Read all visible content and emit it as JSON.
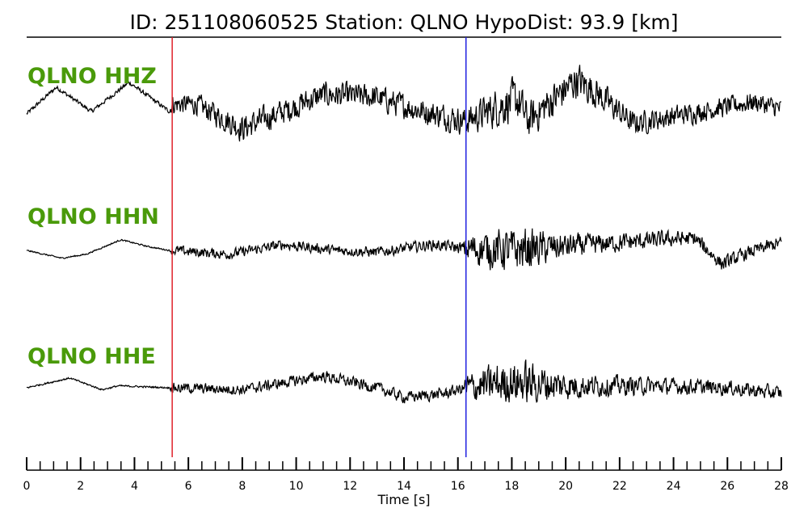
{
  "chart_data": {
    "type": "line",
    "title": "ID: 251108060525   Station: QLNO   HypoDist:     93.9 [km]",
    "xlabel": "Time [s]",
    "xlim": [
      0,
      28
    ],
    "x_ticks": [
      0,
      2,
      4,
      6,
      8,
      10,
      12,
      14,
      16,
      18,
      20,
      22,
      24,
      26,
      28
    ],
    "x_minor_step": 0.5,
    "grid": false,
    "markers": [
      {
        "time": 5.4,
        "color": "#e0202a"
      },
      {
        "time": 16.3,
        "color": "#2020e0"
      }
    ],
    "label_color": "#4a9a0a",
    "trace_color": "#000000",
    "series": [
      {
        "name": "QLNO HHZ",
        "envelope": {
          "t": [
            0,
            1,
            2.4,
            3.7,
            5.3,
            5.4,
            6,
            8,
            9.3,
            11,
            12.9,
            14.7,
            16.3,
            17.5,
            18.2,
            18.6,
            20.4,
            21,
            22.5,
            25.5,
            27,
            28
          ],
          "amp": [
            0.12,
            0.12,
            0.12,
            0.12,
            0.12,
            0.55,
            0.55,
            0.75,
            0.7,
            0.7,
            0.7,
            0.7,
            0.75,
            1.1,
            1.2,
            1.0,
            1.0,
            0.9,
            0.65,
            0.55,
            0.55,
            0.55
          ]
        },
        "background": {
          "t": [
            0,
            1.1,
            2.4,
            3.8,
            5.3,
            5.4,
            6.3,
            8,
            9.3,
            11,
            12.9,
            14.7,
            16.3,
            17.5,
            18.2,
            18.6,
            20.4,
            21,
            22.5,
            25.5,
            27,
            28
          ],
          "offset": [
            -0.2,
            0.9,
            -0.1,
            1.1,
            -0.1,
            0.2,
            0.2,
            -0.8,
            -0.2,
            0.6,
            0.5,
            -0.1,
            -0.5,
            0.1,
            0.4,
            -0.5,
            1.2,
            0.8,
            -0.6,
            0.0,
            0.3,
            0.0
          ]
        }
      },
      {
        "name": "QLNO HHN",
        "envelope": {
          "t": [
            0,
            5.3,
            5.4,
            12,
            16.2,
            16.3,
            17.6,
            18.6,
            19.5,
            21,
            24,
            25.5,
            27,
            28
          ],
          "amp": [
            0.05,
            0.05,
            0.35,
            0.35,
            0.4,
            1.0,
            1.45,
            1.45,
            1.0,
            0.7,
            0.55,
            0.5,
            0.45,
            0.45
          ]
        },
        "background": {
          "t": [
            0,
            1.3,
            2.2,
            3.5,
            4.5,
            5.3,
            5.4,
            7.5,
            9.5,
            11.5,
            13,
            15,
            16.3,
            18,
            20,
            22,
            24,
            24.8,
            25.8,
            27,
            28
          ],
          "offset": [
            0.0,
            -0.4,
            -0.2,
            0.55,
            0.2,
            0.0,
            0.0,
            -0.2,
            0.3,
            0.0,
            -0.1,
            0.3,
            0.1,
            0.0,
            0.2,
            0.4,
            0.6,
            0.6,
            -0.7,
            0.0,
            0.4
          ]
        }
      },
      {
        "name": "QLNO HHE",
        "envelope": {
          "t": [
            0,
            5.3,
            5.4,
            12,
            16.2,
            16.3,
            17.5,
            18.6,
            19.5,
            21,
            24,
            27,
            28
          ],
          "amp": [
            0.06,
            0.06,
            0.35,
            0.4,
            0.4,
            1.0,
            1.4,
            1.5,
            1.1,
            0.75,
            0.55,
            0.5,
            0.5
          ]
        },
        "background": {
          "t": [
            0,
            1.6,
            2.8,
            3.4,
            5.3,
            5.4,
            8,
            11,
            13,
            14,
            15.5,
            16.3,
            18,
            20,
            23,
            26,
            28
          ],
          "offset": [
            0.0,
            0.5,
            -0.1,
            0.1,
            0.0,
            0.0,
            -0.1,
            0.6,
            0.0,
            -0.5,
            -0.3,
            0.0,
            0.3,
            0.1,
            0.1,
            0.0,
            -0.3
          ]
        }
      }
    ]
  }
}
